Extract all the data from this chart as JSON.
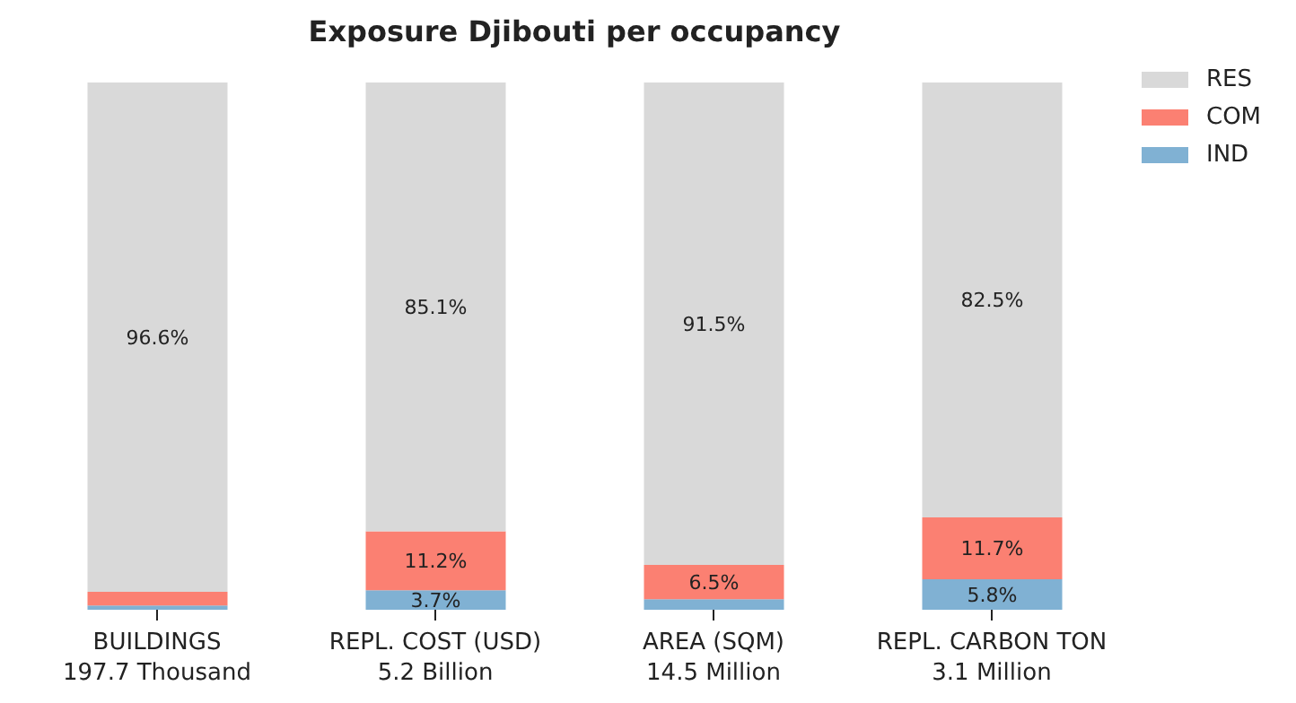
{
  "chart_data": {
    "type": "bar",
    "title": "Exposure Djibouti per occupancy",
    "stacked": true,
    "legend": "top right",
    "categories": [
      "BUILDINGS\n197.7 Thousand",
      "REPL. COST (USD)\n5.2 Billion",
      "AREA (SQM)\n14.5 Million",
      "REPL. CARBON TON\n3.1 Million"
    ],
    "series": [
      {
        "name": "IND",
        "color": "#80b1d3",
        "values": [
          0.8,
          3.7,
          2.0,
          5.8
        ],
        "value_labels": [
          null,
          "3.7%",
          null,
          "5.8%"
        ]
      },
      {
        "name": "COM",
        "color": "#fb8072",
        "values": [
          2.6,
          11.2,
          6.5,
          11.7
        ],
        "value_labels": [
          null,
          "11.2%",
          "6.5%",
          "11.7%"
        ]
      },
      {
        "name": "RES",
        "color": "#d9d9d9",
        "values": [
          96.6,
          85.1,
          91.5,
          82.5
        ],
        "value_labels": [
          "96.6%",
          "85.1%",
          "91.5%",
          "82.5%"
        ]
      }
    ]
  }
}
